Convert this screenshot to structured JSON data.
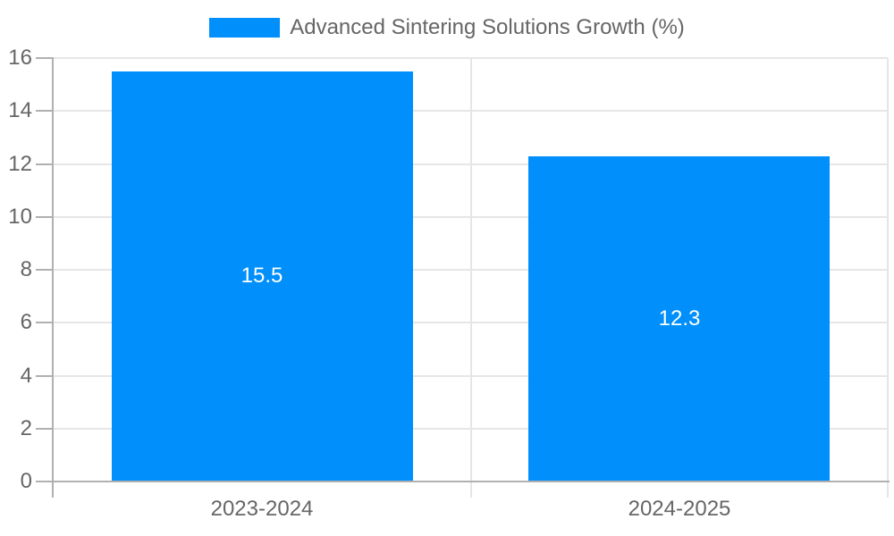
{
  "chart_data": {
    "type": "bar",
    "title": "",
    "legend": [
      "Advanced Sintering Solutions Growth (%)"
    ],
    "legend_position": "top-center",
    "categories": [
      "2023-2024",
      "2024-2025"
    ],
    "values": [
      15.5,
      12.3
    ],
    "data_labels": [
      "15.5",
      "12.3"
    ],
    "ylim": [
      0,
      16
    ],
    "yticks": [
      0,
      2,
      4,
      6,
      8,
      10,
      12,
      14,
      16
    ],
    "grid": true,
    "colors": {
      "bar": "#008FFB",
      "data_label_text": "#FFFFFF",
      "axis_text": "#666666",
      "axis_line": "#B0B0B0",
      "gridline": "#E6E6E6",
      "background": "#FFFFFF"
    }
  }
}
